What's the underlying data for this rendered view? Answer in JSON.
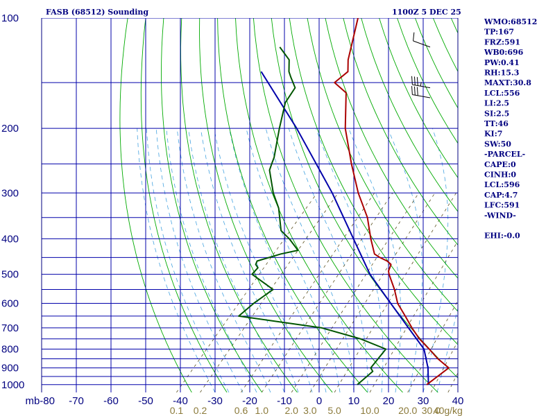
{
  "header": {
    "title": "FASB (68512) Sounding",
    "time": "1100Z  5 DEC 25"
  },
  "indices": [
    "WMO:68512",
    "TP:167",
    "FRZ:591",
    "WB0:696",
    "PW:0.41",
    "RH:15.3",
    "MAXT:30.8",
    "LCL:556",
    "LI:2.5",
    "SI:2.5",
    "TT:46",
    "KI:7",
    "SW:50",
    "-PARCEL-",
    "CAPE:0",
    "CINH:0",
    "LCL:596",
    "CAP:4.7",
    "LFC:591",
    "-WIND-",
    "",
    "EHI:-0.0"
  ],
  "colors": {
    "frame": "#000080",
    "isotherm": "#0000aa",
    "dry_adiabat": "#00aa00",
    "moist_adiabat": "#45a3e0",
    "mixing_ratio": "#5a5020",
    "temperature": "#aa0000",
    "dewpoint": "#005500",
    "parcel": "#0000aa",
    "mixing_ratio_label": "#8b7a3a"
  },
  "chart_data": {
    "type": "line",
    "title": "FASB (68512) Sounding",
    "subtitle": "1100Z  5 DEC 25",
    "y_scale": "log",
    "ylim": [
      100,
      1050
    ],
    "xlim": [
      -80,
      40
    ],
    "skew": true,
    "pressure_ticks": [
      100,
      200,
      300,
      400,
      500,
      600,
      700,
      800,
      900,
      1000
    ],
    "pressure_tick_labels": [
      "100",
      "200",
      "300",
      "400",
      "500",
      "600",
      "700",
      "800",
      "900",
      "1000"
    ],
    "isobar_levels": [
      100,
      150,
      200,
      250,
      300,
      350,
      400,
      450,
      500,
      550,
      600,
      650,
      700,
      750,
      800,
      850,
      900,
      950,
      1000
    ],
    "temperature_ticks": [
      -80,
      -70,
      -60,
      -50,
      -40,
      -30,
      -20,
      -10,
      0,
      10,
      20,
      30,
      40
    ],
    "temperature_tick_labels": [
      "mb-80",
      "-70",
      "-60",
      "-50",
      "-40",
      "-30",
      "-20",
      "-10",
      "0",
      "10",
      "20",
      "30",
      "40"
    ],
    "mixing_ratio_labels": [
      "0.1",
      "0.2",
      "0.6",
      "1.0",
      "2.0",
      "3.0",
      "5.0",
      "10.0",
      "20.0",
      "30.0",
      "40g/kg"
    ],
    "mixing_ratio_values": [
      0.1,
      0.2,
      0.6,
      1.0,
      2.0,
      3.0,
      5.0,
      10.0,
      20.0,
      30.0,
      40.0
    ],
    "series": [
      {
        "name": "temperature",
        "points": [
          [
            1000,
            29
          ],
          [
            900,
            31
          ],
          [
            850,
            25.5
          ],
          [
            800,
            20.5
          ],
          [
            750,
            15
          ],
          [
            700,
            10
          ],
          [
            650,
            5
          ],
          [
            600,
            -0.5
          ],
          [
            550,
            -5
          ],
          [
            500,
            -10.5
          ],
          [
            490,
            -11.5
          ],
          [
            470,
            -12.5
          ],
          [
            460,
            -14.5
          ],
          [
            450,
            -17.5
          ],
          [
            440,
            -20
          ],
          [
            400,
            -25
          ],
          [
            350,
            -31.5
          ],
          [
            300,
            -40.5
          ],
          [
            250,
            -50
          ],
          [
            200,
            -61
          ],
          [
            160,
            -70
          ],
          [
            150,
            -76
          ],
          [
            140,
            -75
          ],
          [
            130,
            -78
          ],
          [
            100,
            -86
          ]
        ]
      },
      {
        "name": "dewpoint",
        "points": [
          [
            1000,
            9
          ],
          [
            920,
            10
          ],
          [
            900,
            8.5
          ],
          [
            800,
            8
          ],
          [
            750,
            -2
          ],
          [
            700,
            -16
          ],
          [
            650,
            -43
          ],
          [
            600,
            -42
          ],
          [
            550,
            -40
          ],
          [
            500,
            -50
          ],
          [
            485,
            -50
          ],
          [
            480,
            -50
          ],
          [
            470,
            -51.5
          ],
          [
            460,
            -52
          ],
          [
            440,
            -47
          ],
          [
            430,
            -43
          ],
          [
            400,
            -48.5
          ],
          [
            380,
            -53
          ],
          [
            330,
            -59.5
          ],
          [
            300,
            -65
          ],
          [
            260,
            -72
          ],
          [
            250,
            -73
          ],
          [
            240,
            -74
          ],
          [
            200,
            -80
          ],
          [
            170,
            -85
          ],
          [
            155,
            -86
          ],
          [
            145,
            -90
          ],
          [
            140,
            -92
          ],
          [
            130,
            -95
          ],
          [
            120,
            -101
          ]
        ]
      },
      {
        "name": "parcel",
        "points": [
          [
            1000,
            29.5
          ],
          [
            900,
            25
          ],
          [
            800,
            19
          ],
          [
            700,
            9
          ],
          [
            600,
            -2.5
          ],
          [
            500,
            -16
          ],
          [
            400,
            -30
          ],
          [
            300,
            -48
          ],
          [
            200,
            -75
          ],
          [
            140,
            -100
          ]
        ]
      }
    ],
    "wind_barbs": [
      {
        "pressure": 120,
        "direction_deg": 290,
        "speed_kt": 10
      },
      {
        "pressure": 155,
        "direction_deg": 280,
        "speed_kt": 35
      },
      {
        "pressure": 165,
        "direction_deg": 280,
        "speed_kt": 30
      }
    ]
  }
}
